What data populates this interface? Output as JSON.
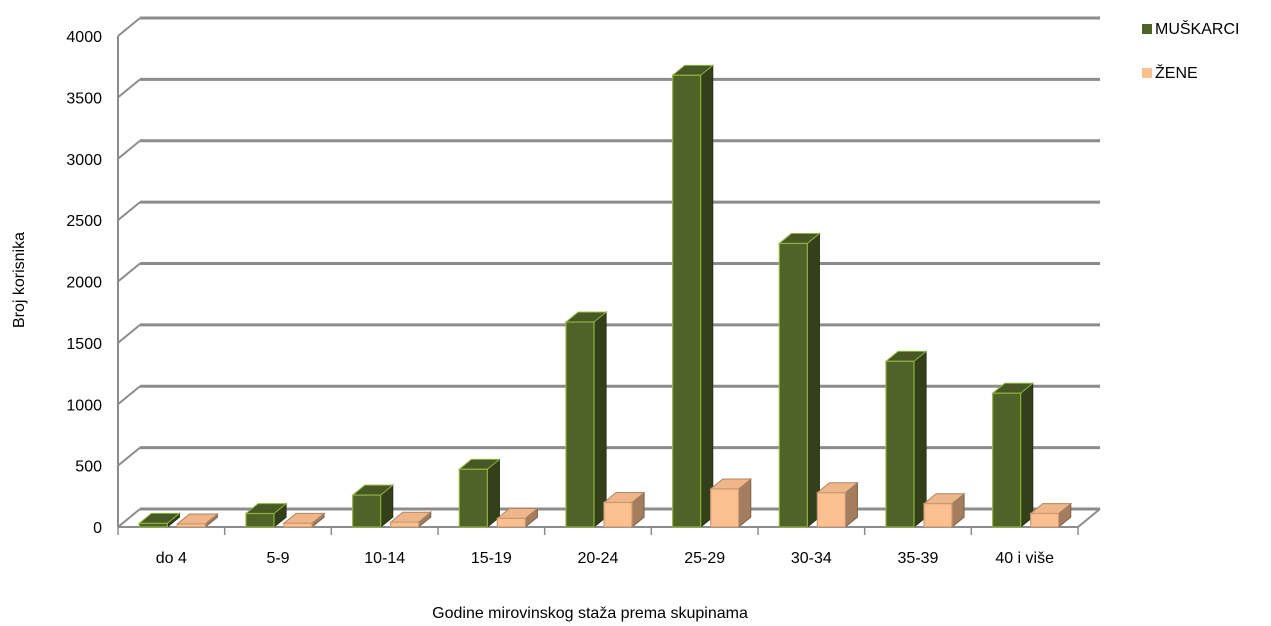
{
  "chart_data": {
    "type": "bar",
    "title": "",
    "xlabel": "Godine mirovinskog staža prema skupinama",
    "ylabel": "Broj korisnika",
    "ylim": [
      0,
      4000
    ],
    "yticks": [
      0,
      500,
      1000,
      1500,
      2000,
      2500,
      3000,
      3500,
      4000
    ],
    "categories": [
      "do 4",
      "5-9",
      "10-14",
      "15-19",
      "20-24",
      "25-29",
      "30-34",
      "35-39",
      "40 i više"
    ],
    "series": [
      {
        "name": "MUŠKARCI",
        "color": "#4f6228",
        "values": [
          30,
          110,
          260,
          470,
          1670,
          3680,
          2310,
          1350,
          1090
        ]
      },
      {
        "name": "ŽENE",
        "color": "#fac090",
        "values": [
          25,
          30,
          40,
          70,
          200,
          310,
          280,
          190,
          110
        ]
      }
    ],
    "grid": true,
    "legend_position": "right",
    "style": "3d-clustered-column"
  }
}
